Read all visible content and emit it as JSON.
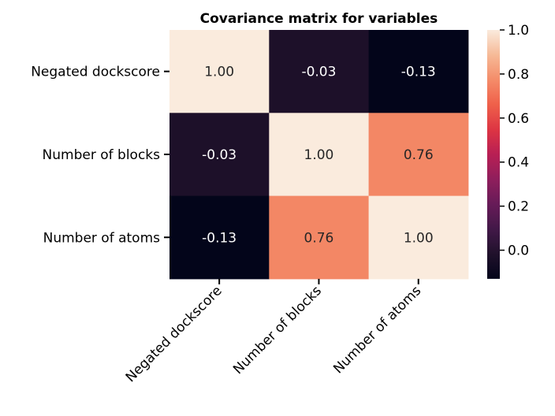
{
  "chart_data": {
    "type": "heatmap",
    "title": "Covariance matrix for variables",
    "xlabel": "",
    "ylabel": "",
    "rows": [
      "Negated dockscore",
      "Number of blocks",
      "Number of atoms"
    ],
    "columns": [
      "Negated dockscore",
      "Number of blocks",
      "Number of atoms"
    ],
    "values": [
      [
        1.0,
        -0.03,
        -0.13
      ],
      [
        -0.03,
        1.0,
        0.76
      ],
      [
        -0.13,
        0.76,
        1.0
      ]
    ],
    "annotations": [
      [
        "1.00",
        "-0.03",
        "-0.13"
      ],
      [
        "-0.03",
        "1.00",
        "0.76"
      ],
      [
        "-0.13",
        "0.76",
        "1.00"
      ]
    ],
    "colorbar": {
      "range": [
        -0.13,
        1.0
      ],
      "ticks": [
        0.0,
        0.2,
        0.4,
        0.6,
        0.8,
        1.0
      ],
      "tick_labels": [
        "0.0",
        "0.2",
        "0.4",
        "0.6",
        "0.8",
        "1.0"
      ],
      "colormap": "rocket"
    },
    "x_tick_rotation": "45 degrees",
    "grid": false
  }
}
